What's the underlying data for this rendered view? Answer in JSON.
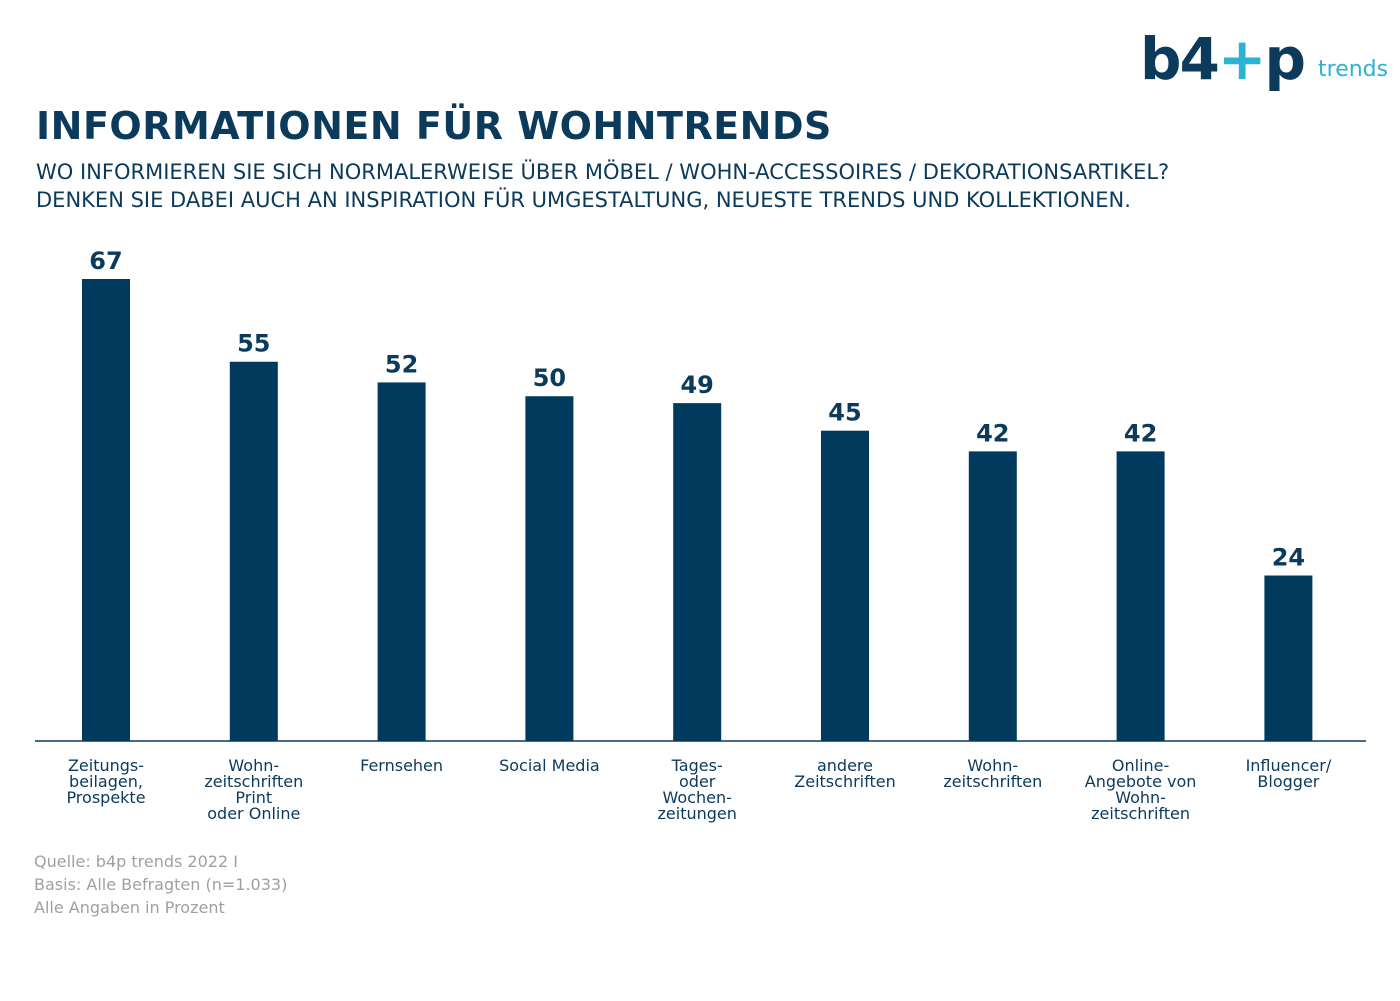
{
  "brand": {
    "mark_left": "b4",
    "mark_right": "p",
    "sub": "trends"
  },
  "title": "INFORMATIONEN FÜR WOHNTRENDS",
  "subtitle_lines": [
    "WO INFORMIEREN SIE SICH NORMALERWEISE ÜBER MÖBEL / WOHN-ACCESSOIRES / DEKORATIONSARTIKEL?",
    "DENKEN SIE DABEI AUCH AN INSPIRATION FÜR UMGESTALTUNG, NEUESTE TRENDS UND KOLLEKTIONEN."
  ],
  "source_lines": [
    "Quelle: b4p trends 2022 I",
    "Basis: Alle Befragten (n=1.033)",
    "Alle Angaben in Prozent"
  ],
  "colors": {
    "bar": "#003a5c",
    "text": "#0b3a5a",
    "accent": "#2bb3d3",
    "source": "#a0a0a0"
  },
  "chart_data": {
    "type": "bar",
    "categories": [
      "Zeitungs-\nbeilagen,\nProspekte",
      "Wohn-\nzeitschriften\nPrint\noder Online",
      "Fernsehen",
      "Social Media",
      "Tages-\noder\nWochen-\nzeitungen",
      "andere\nZeitschriften",
      "Wohn-\nzeitschriften",
      "Online-\nAngebote von\nWohn-\nzeitschriften",
      "Influencer/\nBlogger"
    ],
    "values": [
      67,
      55,
      52,
      50,
      49,
      45,
      42,
      42,
      24
    ],
    "ylim": [
      0,
      67
    ],
    "grid": false,
    "legend": "none"
  }
}
